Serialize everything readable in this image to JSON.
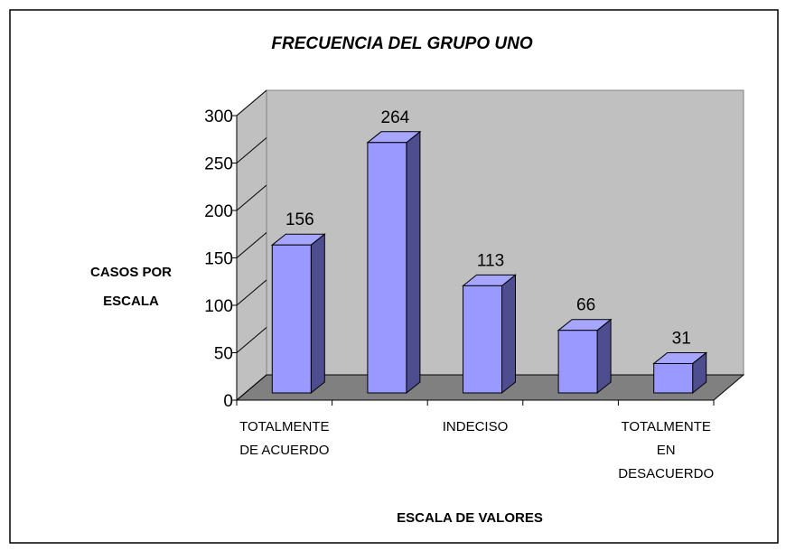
{
  "chart_data": {
    "type": "bar3d",
    "title": "FRECUENCIA DEL GRUPO UNO",
    "y_label": "CASOS POR\nESCALA",
    "x_label": "ESCALA DE VALORES",
    "categories": [
      "TOTALMENTE\nDE ACUERDO",
      null,
      "INDECISO",
      null,
      "TOTALMENTE\nEN\nDESACUERDO"
    ],
    "values": [
      156,
      264,
      113,
      66,
      31
    ],
    "color": "#9999ff",
    "ylim": [
      0,
      300
    ],
    "yticks": [
      0,
      50,
      100,
      150,
      200,
      250,
      300
    ],
    "wall_color": "#c0c0c0",
    "floor_color": "#808080"
  }
}
